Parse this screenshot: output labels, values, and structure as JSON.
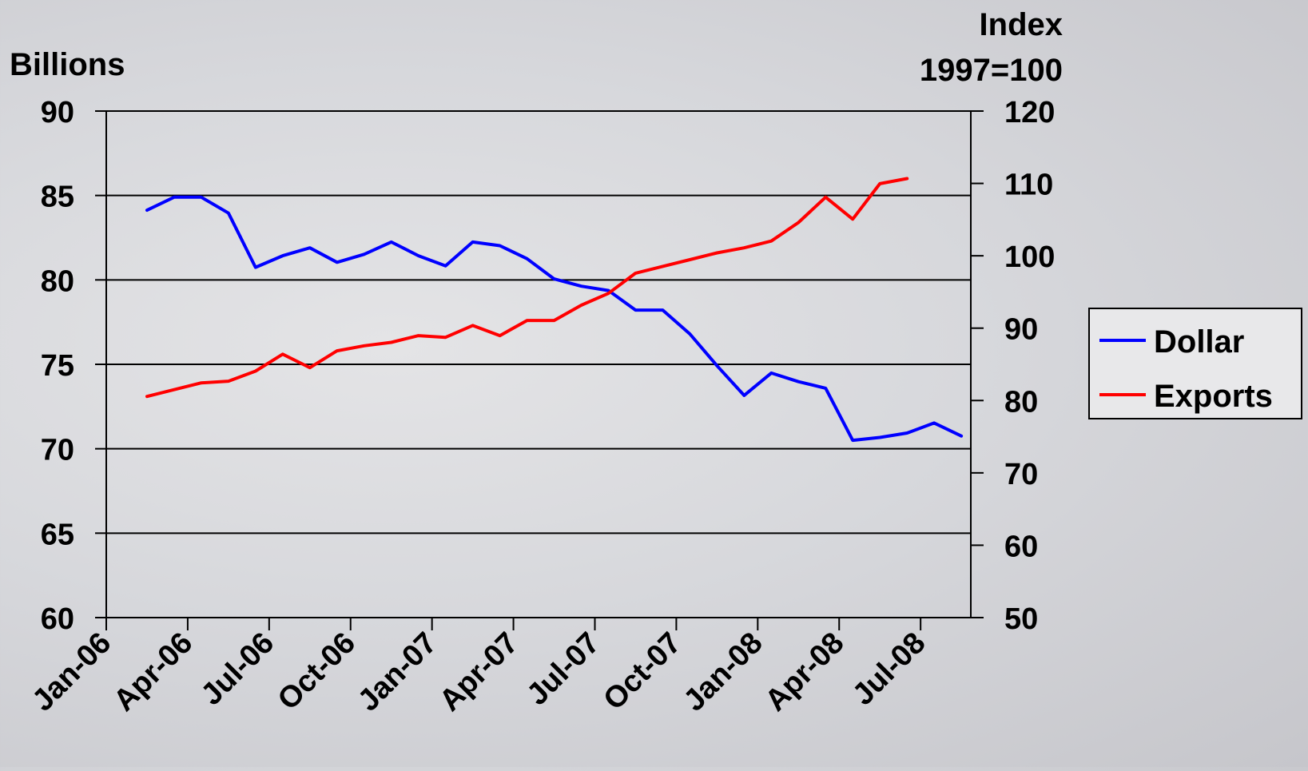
{
  "chart_data": {
    "type": "line",
    "left_axis_title": "Billions",
    "right_axis_title_line1": "Index",
    "right_axis_title_line2": "1997=100",
    "y_left": {
      "min": 60,
      "max": 90,
      "ticks": [
        "60",
        "65",
        "70",
        "75",
        "80",
        "85",
        "90"
      ]
    },
    "y_right": {
      "min": 50,
      "max": 120,
      "ticks": [
        "50",
        "60",
        "70",
        "80",
        "90",
        "100",
        "110",
        "120"
      ]
    },
    "x_labels": [
      "Jan-06",
      "Apr-06",
      "Jul-06",
      "Oct-06",
      "Jan-07",
      "Apr-07",
      "Jul-07",
      "Oct-07",
      "Jan-08",
      "Apr-08",
      "Jul-08"
    ],
    "months": [
      "Jan-06",
      "Feb-06",
      "Mar-06",
      "Apr-06",
      "May-06",
      "Jun-06",
      "Jul-06",
      "Aug-06",
      "Sep-06",
      "Oct-06",
      "Nov-06",
      "Dec-06",
      "Jan-07",
      "Feb-07",
      "Mar-07",
      "Apr-07",
      "May-07",
      "Jun-07",
      "Jul-07",
      "Aug-07",
      "Sep-07",
      "Oct-07",
      "Nov-07",
      "Dec-07",
      "Jan-08",
      "Feb-08",
      "Mar-08",
      "Apr-08",
      "May-08",
      "Jun-08",
      "Jul-08",
      "Aug-08"
    ],
    "grid": "horizontal",
    "legend_position": "right",
    "series": [
      {
        "name": "Dollar",
        "axis": "right",
        "color": "#0000ff",
        "values": [
          106.3,
          108.1,
          108.1,
          105.9,
          98.4,
          100.0,
          101.1,
          99.1,
          100.2,
          101.9,
          100.0,
          98.6,
          101.9,
          101.4,
          99.6,
          96.8,
          95.8,
          95.2,
          92.5,
          92.5,
          89.2,
          84.8,
          80.7,
          83.8,
          82.6,
          81.7,
          74.5,
          74.9,
          75.5,
          76.9,
          75.1
        ],
        "start_month": "Feb-06"
      },
      {
        "name": "Exports",
        "axis": "left",
        "color": "#ff0000",
        "values": [
          73.1,
          73.5,
          73.9,
          74.0,
          74.6,
          75.6,
          74.8,
          75.8,
          76.1,
          76.3,
          76.7,
          76.6,
          77.3,
          76.7,
          77.6,
          77.6,
          78.5,
          79.2,
          80.4,
          80.8,
          81.2,
          81.6,
          81.9,
          82.3,
          83.4,
          84.9,
          83.6,
          85.7,
          86.0
        ],
        "start_month": "Feb-06"
      }
    ]
  }
}
